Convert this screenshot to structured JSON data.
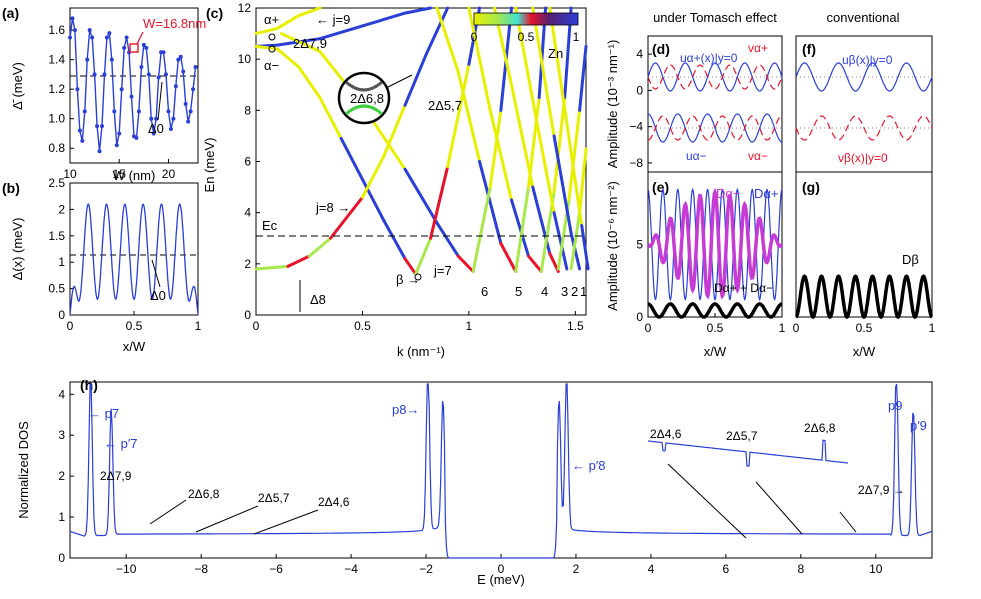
{
  "panel_labels": {
    "a": "(a)",
    "b": "(b)",
    "c": "(c)",
    "d": "(d)",
    "e": "(e)",
    "f": "(f)",
    "g": "(g)",
    "h": "(h)"
  },
  "headings": {
    "tomasch": "under Tomasch effect",
    "conventional": "conventional"
  },
  "colors": {
    "blue": "#2a3fd6",
    "red": "#e8132a",
    "magenta": "#c63bd4",
    "black": "#000000",
    "gray": "#888888"
  },
  "chart_data": [
    {
      "id": "a",
      "type": "line",
      "xlabel": "W (nm)",
      "ylabel": "Δ̄ (meV)",
      "xlim": [
        10,
        23
      ],
      "ylim": [
        0.7,
        1.75
      ],
      "xticks": [
        10,
        15,
        20
      ],
      "yticks": [
        0.8,
        1.0,
        1.2,
        1.4,
        1.6
      ],
      "mean_line": 1.2,
      "annotation_w": "W=16.8nm",
      "annotation_d0": "Δ0",
      "x": [
        10.0,
        10.25,
        10.5,
        10.75,
        11.0,
        11.25,
        11.5,
        11.75,
        12.0,
        12.25,
        12.5,
        12.75,
        13.0,
        13.25,
        13.5,
        13.75,
        14.0,
        14.25,
        14.5,
        14.75,
        15.0,
        15.25,
        15.5,
        15.75,
        16.0,
        16.25,
        16.5,
        16.75,
        17.0,
        17.25,
        17.5,
        17.75,
        18.0,
        18.25,
        18.5,
        18.75,
        19.0,
        19.25,
        19.5,
        19.75,
        20.0,
        20.25,
        20.5,
        20.75,
        21.0,
        21.25,
        21.5,
        21.75,
        22.0,
        22.25,
        22.5,
        22.75
      ],
      "y": [
        1.55,
        1.68,
        1.6,
        1.2,
        0.92,
        0.85,
        1.05,
        1.4,
        1.6,
        1.55,
        1.3,
        0.95,
        0.78,
        0.95,
        1.3,
        1.55,
        1.58,
        1.4,
        1.05,
        0.82,
        0.9,
        1.2,
        1.48,
        1.55,
        1.45,
        1.15,
        0.88,
        0.87,
        1.05,
        1.35,
        1.5,
        1.48,
        1.3,
        1.0,
        0.9,
        1.0,
        1.28,
        1.45,
        1.45,
        1.3,
        1.05,
        0.93,
        1.0,
        1.22,
        1.4,
        1.42,
        1.32,
        1.1,
        0.98,
        1.05,
        1.2,
        1.35
      ]
    },
    {
      "id": "b",
      "type": "line",
      "xlabel": "x/W",
      "ylabel": "Δ(x) (meV)",
      "xlim": [
        0,
        1
      ],
      "ylim": [
        0,
        2.5
      ],
      "xticks": [
        0,
        0.5,
        1
      ],
      "yticks": [
        0,
        0.5,
        1.0,
        1.5,
        2.0,
        2.5
      ],
      "mean_line": 1.2,
      "annotation_d0": "Δ0",
      "oscillations": 7,
      "amplitude": 0.9
    },
    {
      "id": "c",
      "type": "line",
      "xlabel": "k (nm⁻¹)",
      "ylabel": "En (meV)",
      "xlim": [
        0,
        1.55
      ],
      "ylim": [
        0,
        12
      ],
      "xticks": [
        0,
        0.5,
        1,
        1.5
      ],
      "yticks": [
        0,
        2,
        4,
        6,
        8,
        10,
        12
      ],
      "ec_value": 3.1,
      "ec_label": "Ec",
      "colorbar": {
        "label": "Zn",
        "ticks": [
          "0",
          "0.5",
          "1"
        ]
      },
      "band_labels": {
        "j9": "← j=9",
        "j8": "j=8 →",
        "j7": "j=7",
        "beta": "β →",
        "n6": "6",
        "n5": "5",
        "n4": "4",
        "n3": "3",
        "n2": "2",
        "n1": "1",
        "alpha_plus": "α+",
        "alpha_minus": "α−",
        "d79": "2Δ7,9",
        "d57": "2Δ5,7",
        "d68": "2Δ6,8",
        "d8": "Δ8"
      },
      "bands": [
        {
          "name": "j=9",
          "k": [
            0.0,
            0.1,
            0.2,
            0.3
          ],
          "E": [
            11.0,
            11.2,
            11.7,
            12.0
          ]
        },
        {
          "name": "j=8 upper",
          "k": [
            0.0,
            0.1,
            0.3,
            0.5,
            0.7,
            0.82
          ],
          "E": [
            10.5,
            10.55,
            10.8,
            11.3,
            11.8,
            12.0
          ]
        },
        {
          "name": "j=8",
          "k": [
            0.0,
            0.1,
            0.2,
            0.3,
            0.4,
            0.5,
            0.6,
            0.7,
            0.75
          ],
          "E": [
            10.5,
            10.4,
            9.7,
            8.5,
            6.9,
            5.3,
            3.7,
            2.2,
            1.6
          ]
        },
        {
          "name": "j=8 band",
          "k": [
            0.0,
            0.15,
            0.25,
            0.35,
            0.5,
            0.6,
            0.7,
            0.8,
            0.9
          ],
          "E": [
            1.8,
            1.9,
            2.3,
            3.0,
            4.6,
            6.2,
            8.2,
            10.2,
            12.0
          ]
        },
        {
          "name": "j=7",
          "k": [
            0.12,
            0.3,
            0.5,
            0.7,
            0.85,
            0.95,
            1.02
          ],
          "E": [
            11.0,
            10.3,
            8.2,
            5.7,
            3.6,
            2.3,
            1.7
          ]
        },
        {
          "name": "j=7 up",
          "k": [
            0.75,
            0.82,
            0.9,
            1.0,
            1.05
          ],
          "E": [
            1.6,
            3.0,
            5.8,
            9.8,
            12.0
          ]
        },
        {
          "name": "n6 down",
          "k": [
            0.85,
            0.95,
            1.05,
            1.15,
            1.22
          ],
          "E": [
            12.0,
            9.5,
            6.0,
            2.8,
            1.7
          ]
        },
        {
          "name": "n6 up",
          "k": [
            1.02,
            1.1,
            1.15,
            1.2
          ],
          "E": [
            1.7,
            5.0,
            8.0,
            12.0
          ]
        },
        {
          "name": "n5 down",
          "k": [
            1.0,
            1.1,
            1.2,
            1.28,
            1.34
          ],
          "E": [
            12.0,
            8.0,
            4.5,
            2.3,
            1.7
          ]
        },
        {
          "name": "n5 up",
          "k": [
            1.22,
            1.28,
            1.33,
            1.36
          ],
          "E": [
            1.7,
            5.0,
            8.5,
            12.0
          ]
        },
        {
          "name": "n4 down",
          "k": [
            1.12,
            1.2,
            1.3,
            1.38,
            1.42
          ],
          "E": [
            12.0,
            9.0,
            5.0,
            2.4,
            1.7
          ]
        },
        {
          "name": "n4 up",
          "k": [
            1.34,
            1.4,
            1.45,
            1.48
          ],
          "E": [
            1.7,
            4.8,
            8.5,
            12.0
          ]
        },
        {
          "name": "n3 down",
          "k": [
            1.22,
            1.32,
            1.4,
            1.46
          ],
          "E": [
            12.0,
            7.5,
            4.0,
            1.8
          ]
        },
        {
          "name": "n3 up",
          "k": [
            1.42,
            1.47,
            1.52,
            1.55
          ],
          "E": [
            1.8,
            4.5,
            8.0,
            10.5
          ]
        },
        {
          "name": "n2 down",
          "k": [
            1.3,
            1.4,
            1.48,
            1.52
          ],
          "E": [
            12.0,
            7.0,
            3.2,
            1.8
          ]
        },
        {
          "name": "n2 up",
          "k": [
            1.48,
            1.52,
            1.55
          ],
          "E": [
            1.8,
            4.0,
            6.5
          ]
        },
        {
          "name": "n1 down",
          "k": [
            1.38,
            1.46,
            1.53,
            1.56
          ],
          "E": [
            12.0,
            7.5,
            3.5,
            1.8
          ]
        }
      ]
    },
    {
      "id": "d",
      "type": "line",
      "ylabel": "Amplitude (10⁻³ nm⁻¹)",
      "xlim": [
        0,
        1
      ],
      "ylim": [
        -9,
        6
      ],
      "yticks": [
        -8,
        -4,
        0,
        4
      ],
      "labels": {
        "u_plus": "uα+(x)|y=0",
        "v_plus": "vα+",
        "u_minus": "uα−",
        "v_minus": "vα−"
      }
    },
    {
      "id": "e",
      "type": "line",
      "ylabel": "Amplitude (10⁻⁶ nm⁻²)",
      "xlabel": "x/W",
      "xlim": [
        0,
        1
      ],
      "ylim": [
        0,
        10
      ],
      "xticks": [
        0,
        0.5,
        1
      ],
      "yticks": [
        0,
        5
      ],
      "labels": {
        "d_minus": "Dα−",
        "d_plus": "Dα+",
        "sum": "Dα+ + Dα−"
      }
    },
    {
      "id": "f",
      "type": "line",
      "xlim": [
        0,
        1
      ],
      "ylim": [
        -9,
        6
      ],
      "labels": {
        "u": "uβ(x)|y=0",
        "v": "vβ(x)|y=0"
      }
    },
    {
      "id": "g",
      "type": "line",
      "xlabel": "x/W",
      "xlim": [
        0,
        1
      ],
      "ylim": [
        0,
        10
      ],
      "xticks": [
        0,
        0.5,
        1
      ],
      "labels": {
        "d": "Dβ"
      }
    },
    {
      "id": "h",
      "type": "line",
      "xlabel": "E (meV)",
      "ylabel": "Normalized DOS",
      "xlim": [
        -11.5,
        11.5
      ],
      "ylim": [
        0,
        4.3
      ],
      "xticks": [
        -10,
        -8,
        -6,
        -4,
        -2,
        0,
        2,
        4,
        6,
        8,
        10
      ],
      "yticks": [
        0,
        1,
        2,
        3,
        4
      ],
      "peaks": {
        "p7": "← p7",
        "p7b": "← p′7",
        "p8": "p8→",
        "p8b": "← p′8",
        "p9": "p9",
        "p9b": "p′9"
      },
      "gaps": {
        "d79l": "2Δ7,9",
        "d68": "2Δ6,8",
        "d57": "2Δ5,7",
        "d46": "2Δ4,6",
        "d46i": "2Δ4,6",
        "d57i": "2Δ5,7",
        "d68i": "2Δ6,8",
        "d79r": "2Δ7,9 →"
      }
    }
  ]
}
